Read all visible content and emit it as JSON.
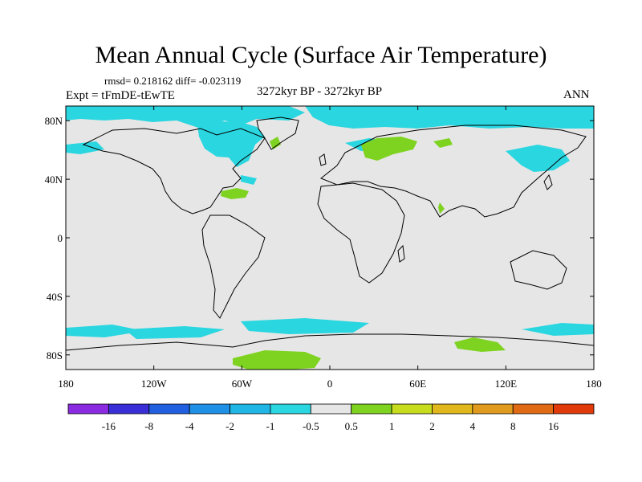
{
  "title": "Mean Annual Cycle (Surface Air Temperature)",
  "stats": "rmsd= 0.218162 diff= -0.023119",
  "experiment": "Expt = tFmDE-tEwTE",
  "period": "3272kyr BP - 3272kyr BP",
  "season": "ANN",
  "map": {
    "background_color": "#e6e6e6",
    "lon_range": [
      -180,
      180
    ],
    "lat_range": [
      -90,
      90
    ],
    "y_ticks": [
      {
        "lat": 80,
        "label": "80N"
      },
      {
        "lat": 40,
        "label": "40N"
      },
      {
        "lat": 0,
        "label": "0"
      },
      {
        "lat": -40,
        "label": "40S"
      },
      {
        "lat": -80,
        "label": "80S"
      }
    ],
    "x_ticks": [
      {
        "lon": -180,
        "label": "180"
      },
      {
        "lon": -120,
        "label": "120W"
      },
      {
        "lon": -60,
        "label": "60W"
      },
      {
        "lon": 0,
        "label": "0"
      },
      {
        "lon": 60,
        "label": "60E"
      },
      {
        "lon": 120,
        "label": "120E"
      },
      {
        "lon": 180,
        "label": "180"
      }
    ]
  },
  "colorbar": {
    "colors": [
      "#8a2be2",
      "#3a2fd6",
      "#1f5fe0",
      "#1e90e6",
      "#1fb6e6",
      "#2ad6e0",
      "#e6e6e6",
      "#7ed321",
      "#c8dc1e",
      "#e0b81e",
      "#e09a1e",
      "#e06a14",
      "#e03a0a"
    ],
    "labels": [
      "-16",
      "-8",
      "-4",
      "-2",
      "-1",
      "-0.5",
      "0.5",
      "1",
      "2",
      "4",
      "8",
      "16"
    ]
  },
  "legend_colors": {
    "cool": "#2ad6e0",
    "warm": "#7ed321"
  }
}
